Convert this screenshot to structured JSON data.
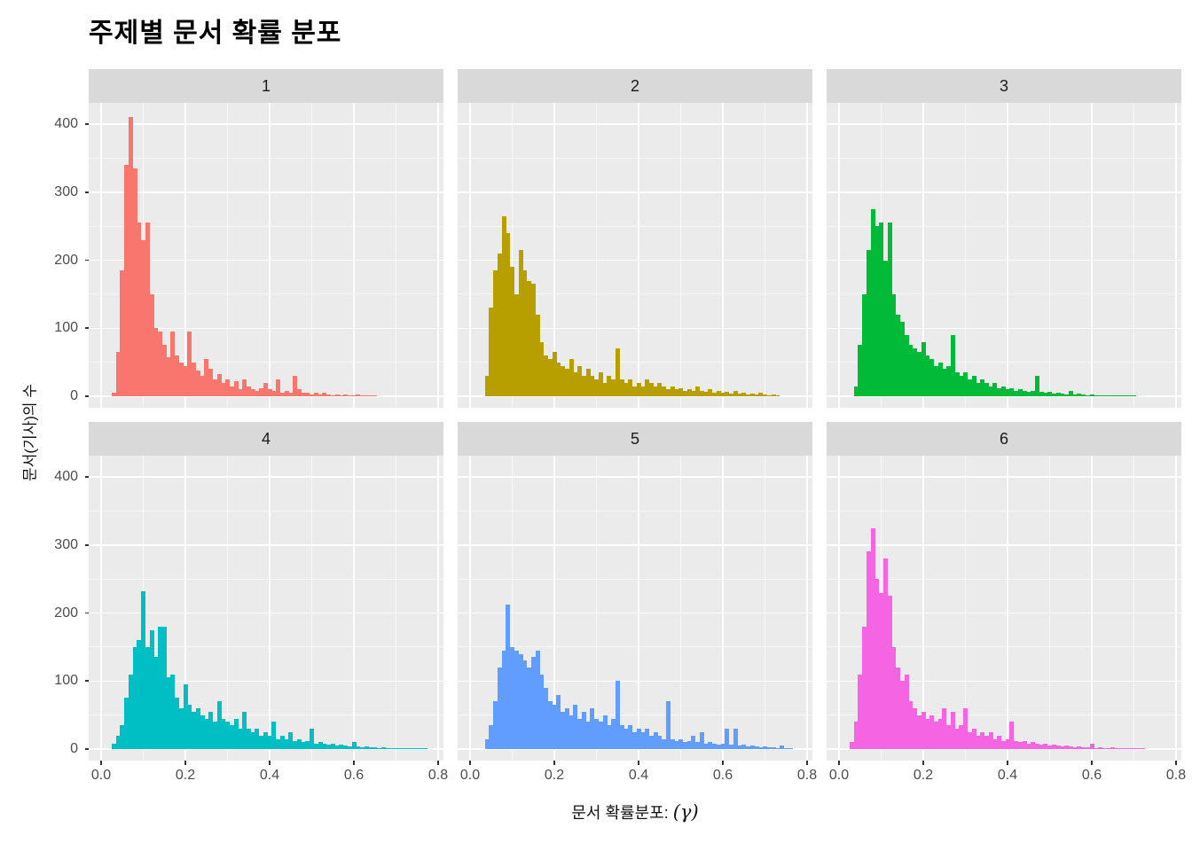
{
  "title": "주제별 문서 확률 분포",
  "axes": {
    "y_title": "문서(기사)의 수",
    "x_title_text": "문서 확률분포:",
    "x_title_symbol": "(γ)",
    "y_ticks": [
      0,
      100,
      200,
      300,
      400
    ],
    "x_ticks": [
      "0.0",
      "0.2",
      "0.4",
      "0.6",
      "0.8"
    ]
  },
  "chart_data": {
    "type": "bar",
    "subtype": "faceted_histogram",
    "title": "주제별 문서 확률 분포",
    "xlabel": "문서 확률분포: (γ)",
    "ylabel": "문서(기사)의 수",
    "xlim": [
      0,
      0.8
    ],
    "ylim": [
      0,
      400
    ],
    "grid": true,
    "x_major_gridlines": [
      0,
      0.2,
      0.4,
      0.6,
      0.8
    ],
    "x_minor_gridlines": [
      0.1,
      0.3,
      0.5,
      0.7
    ],
    "y_major_gridlines": [
      0,
      100,
      200,
      300,
      400
    ],
    "y_minor_gridlines": [
      50,
      150,
      250,
      350
    ],
    "bin_width": 0.01,
    "facets": [
      {
        "label": "1",
        "color": "#F8766D",
        "bin_start": 0.03,
        "counts": [
          5,
          65,
          185,
          340,
          410,
          335,
          255,
          230,
          255,
          150,
          100,
          95,
          75,
          58,
          95,
          60,
          50,
          45,
          95,
          50,
          38,
          30,
          55,
          40,
          25,
          32,
          20,
          25,
          15,
          22,
          10,
          25,
          15,
          10,
          8,
          12,
          20,
          10,
          8,
          25,
          5,
          8,
          5,
          30,
          10,
          5,
          5,
          3,
          5,
          3,
          5,
          3,
          2,
          3,
          2,
          3,
          2,
          2,
          3,
          2,
          2,
          1,
          2
        ]
      },
      {
        "label": "2",
        "color": "#B79F00",
        "bin_start": 0.04,
        "counts": [
          30,
          130,
          185,
          210,
          265,
          240,
          190,
          150,
          215,
          185,
          170,
          165,
          120,
          80,
          60,
          55,
          65,
          50,
          45,
          40,
          55,
          35,
          45,
          30,
          40,
          30,
          25,
          35,
          20,
          30,
          25,
          70,
          25,
          20,
          25,
          15,
          20,
          15,
          25,
          20,
          15,
          20,
          15,
          10,
          15,
          10,
          12,
          8,
          10,
          8,
          15,
          8,
          6,
          10,
          5,
          8,
          5,
          6,
          4,
          8,
          4,
          5,
          3,
          4,
          3,
          5,
          3,
          2,
          3,
          2
        ]
      },
      {
        "label": "3",
        "color": "#00BA38",
        "bin_start": 0.04,
        "counts": [
          15,
          75,
          150,
          215,
          275,
          250,
          255,
          200,
          255,
          150,
          120,
          110,
          90,
          75,
          70,
          65,
          80,
          60,
          55,
          45,
          50,
          40,
          45,
          90,
          35,
          30,
          35,
          25,
          30,
          20,
          25,
          20,
          15,
          20,
          12,
          15,
          10,
          12,
          8,
          10,
          8,
          6,
          8,
          30,
          6,
          5,
          6,
          4,
          5,
          4,
          3,
          8,
          3,
          4,
          3,
          2,
          3,
          2,
          2,
          2,
          1,
          2,
          1,
          1,
          2,
          1,
          2
        ]
      },
      {
        "label": "4",
        "color": "#00BFC4",
        "bin_start": 0.03,
        "counts": [
          8,
          20,
          35,
          75,
          110,
          150,
          160,
          232,
          150,
          175,
          135,
          180,
          180,
          105,
          110,
          75,
          60,
          95,
          65,
          55,
          60,
          50,
          45,
          55,
          40,
          70,
          45,
          40,
          35,
          45,
          30,
          55,
          30,
          25,
          30,
          20,
          25,
          20,
          40,
          15,
          20,
          15,
          25,
          12,
          15,
          10,
          12,
          30,
          8,
          10,
          8,
          6,
          8,
          5,
          6,
          5,
          4,
          10,
          4,
          3,
          4,
          3,
          3,
          2,
          3,
          2,
          2,
          2,
          2,
          1,
          2,
          1,
          2,
          1,
          2
        ]
      },
      {
        "label": "5",
        "color": "#619CFF",
        "bin_start": 0.04,
        "counts": [
          15,
          35,
          70,
          120,
          145,
          212,
          150,
          145,
          140,
          130,
          120,
          135,
          145,
          110,
          90,
          70,
          65,
          80,
          55,
          60,
          50,
          65,
          45,
          55,
          40,
          60,
          45,
          40,
          50,
          35,
          45,
          100,
          35,
          30,
          35,
          25,
          30,
          25,
          30,
          20,
          25,
          20,
          15,
          70,
          15,
          12,
          15,
          10,
          12,
          20,
          10,
          25,
          8,
          10,
          8,
          6,
          8,
          30,
          6,
          30,
          5,
          6,
          4,
          5,
          4,
          3,
          4,
          3,
          3,
          2,
          5,
          2,
          2
        ]
      },
      {
        "label": "6",
        "color": "#F564E3",
        "bin_start": 0.03,
        "counts": [
          10,
          40,
          110,
          180,
          290,
          325,
          250,
          230,
          280,
          225,
          150,
          120,
          100,
          110,
          70,
          60,
          50,
          55,
          45,
          50,
          40,
          45,
          60,
          35,
          55,
          30,
          35,
          60,
          25,
          30,
          20,
          25,
          20,
          25,
          15,
          20,
          12,
          15,
          40,
          12,
          10,
          12,
          8,
          10,
          8,
          6,
          8,
          5,
          6,
          5,
          4,
          5,
          4,
          3,
          4,
          3,
          3,
          8,
          2,
          3,
          2,
          2,
          3,
          2,
          1,
          2,
          1,
          1,
          1,
          2
        ]
      }
    ]
  }
}
